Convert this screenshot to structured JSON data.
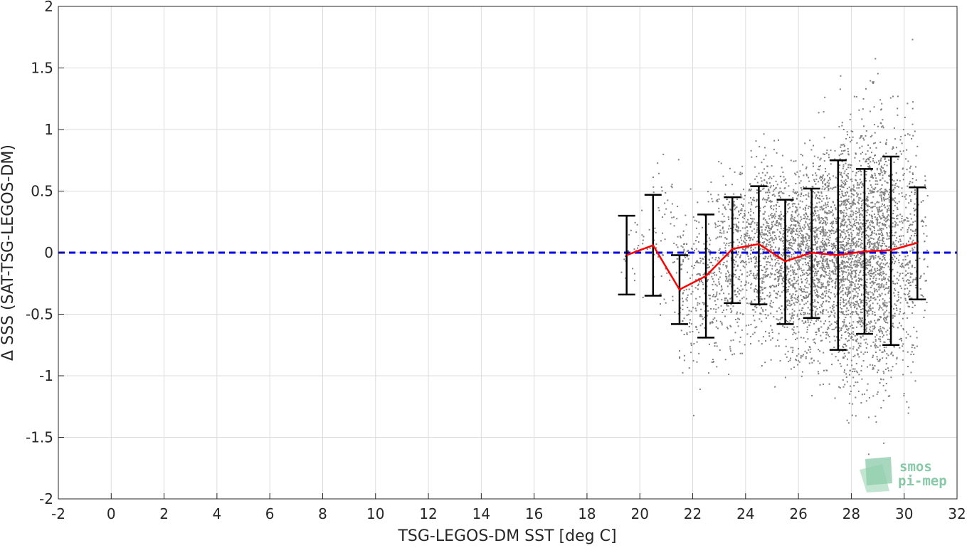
{
  "chart_data": {
    "type": "scatter",
    "xlabel": "TSG-LEGOS-DM SST [deg C]",
    "ylabel": "Δ SSS (SAT-TSG-LEGOS-DM)",
    "xlim": [
      -2,
      32
    ],
    "ylim": [
      -2,
      2
    ],
    "xticks": [
      -2,
      0,
      2,
      4,
      6,
      8,
      10,
      12,
      14,
      16,
      18,
      20,
      22,
      24,
      26,
      28,
      30,
      32
    ],
    "xtick_labels": [
      "-2",
      "0",
      "2",
      "4",
      "6",
      "8",
      "10",
      "12",
      "14",
      "16",
      "18",
      "20",
      "22",
      "24",
      "26",
      "28",
      "30",
      "32"
    ],
    "yticks": [
      -2,
      -1.5,
      -1,
      -0.5,
      0,
      0.5,
      1,
      1.5,
      2
    ],
    "ytick_labels": [
      "-2",
      "-1.5",
      "-1",
      "-0.5",
      "0",
      "0.5",
      "1",
      "1.5",
      "2"
    ],
    "grid": true,
    "zero_line": {
      "y": 0,
      "style": "dashed",
      "color": "#0000e6"
    },
    "mean_line": {
      "color": "#ff0000",
      "x": [
        19.5,
        20.5,
        21.5,
        22.5,
        23.5,
        24.5,
        25.5,
        26.5,
        27.5,
        28.5,
        29.5,
        30.5
      ],
      "y": [
        -0.02,
        0.06,
        -0.3,
        -0.19,
        0.03,
        0.07,
        -0.07,
        0.0,
        -0.02,
        0.01,
        0.02,
        0.08
      ]
    },
    "error_bars": {
      "color": "#000000",
      "x": [
        19.5,
        20.5,
        21.5,
        22.5,
        23.5,
        24.5,
        25.5,
        26.5,
        27.5,
        28.5,
        29.5,
        30.5
      ],
      "low": [
        -0.34,
        -0.35,
        -0.58,
        -0.69,
        -0.41,
        -0.42,
        -0.58,
        -0.53,
        -0.79,
        -0.66,
        -0.75,
        -0.38
      ],
      "high": [
        0.3,
        0.47,
        -0.02,
        0.31,
        0.45,
        0.54,
        0.43,
        0.52,
        0.75,
        0.68,
        0.78,
        0.53
      ]
    },
    "scatter_series": {
      "color": "#808080",
      "bins": [
        {
          "xmin": 19.3,
          "xmax": 20.5,
          "count": 30,
          "mean": 0.0,
          "sd": 0.22
        },
        {
          "xmin": 20.5,
          "xmax": 21.5,
          "count": 70,
          "mean": 0.05,
          "sd": 0.32
        },
        {
          "xmin": 21.5,
          "xmax": 22.5,
          "count": 180,
          "mean": -0.25,
          "sd": 0.35
        },
        {
          "xmin": 22.5,
          "xmax": 23.5,
          "count": 260,
          "mean": -0.15,
          "sd": 0.38
        },
        {
          "xmin": 23.5,
          "xmax": 24.5,
          "count": 380,
          "mean": 0.03,
          "sd": 0.33
        },
        {
          "xmin": 24.5,
          "xmax": 25.5,
          "count": 520,
          "mean": 0.06,
          "sd": 0.36
        },
        {
          "xmin": 25.5,
          "xmax": 26.5,
          "count": 640,
          "mean": -0.06,
          "sd": 0.37
        },
        {
          "xmin": 26.5,
          "xmax": 27.5,
          "count": 760,
          "mean": 0.0,
          "sd": 0.4
        },
        {
          "xmin": 27.5,
          "xmax": 28.5,
          "count": 1000,
          "mean": -0.01,
          "sd": 0.5
        },
        {
          "xmin": 28.5,
          "xmax": 29.5,
          "count": 900,
          "mean": 0.01,
          "sd": 0.52
        },
        {
          "xmin": 29.5,
          "xmax": 30.5,
          "count": 420,
          "mean": 0.02,
          "sd": 0.5
        },
        {
          "xmin": 30.5,
          "xmax": 30.9,
          "count": 40,
          "mean": 0.08,
          "sd": 0.32
        }
      ]
    }
  },
  "logo": {
    "line1": "smos",
    "line2": "pi-mep",
    "color": "#5fb88a"
  }
}
